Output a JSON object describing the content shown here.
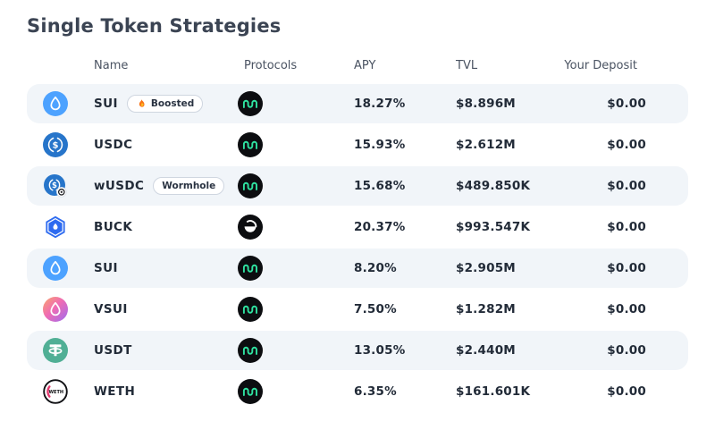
{
  "title": "Single Token Strategies",
  "table": {
    "headers": {
      "name": "Name",
      "protocols": "Protocols",
      "apy": "APY",
      "tvl": "TVL",
      "deposit": "Your Deposit"
    },
    "rows": [
      {
        "token": "SUI",
        "token_icon": "sui-icon",
        "badge": "Boosted",
        "badge_icon": "flame-icon",
        "protocol_icon": "navi-icon",
        "apy": "18.27%",
        "tvl": "$8.896M",
        "deposit": "$0.00"
      },
      {
        "token": "USDC",
        "token_icon": "usdc-icon",
        "badge": null,
        "badge_icon": null,
        "protocol_icon": "navi-icon",
        "apy": "15.93%",
        "tvl": "$2.612M",
        "deposit": "$0.00"
      },
      {
        "token": "wUSDC",
        "token_icon": "wusdc-icon",
        "badge": "Wormhole",
        "badge_icon": null,
        "protocol_icon": "navi-icon",
        "apy": "15.68%",
        "tvl": "$489.850K",
        "deposit": "$0.00"
      },
      {
        "token": "BUCK",
        "token_icon": "buck-icon",
        "badge": null,
        "badge_icon": null,
        "protocol_icon": "bucket-icon",
        "apy": "20.37%",
        "tvl": "$993.547K",
        "deposit": "$0.00"
      },
      {
        "token": "SUI",
        "token_icon": "sui-icon",
        "badge": null,
        "badge_icon": null,
        "protocol_icon": "navi-icon",
        "apy": "8.20%",
        "tvl": "$2.905M",
        "deposit": "$0.00"
      },
      {
        "token": "VSUI",
        "token_icon": "vsui-icon",
        "badge": null,
        "badge_icon": null,
        "protocol_icon": "navi-icon",
        "apy": "7.50%",
        "tvl": "$1.282M",
        "deposit": "$0.00"
      },
      {
        "token": "USDT",
        "token_icon": "usdt-icon",
        "badge": null,
        "badge_icon": null,
        "protocol_icon": "navi-icon",
        "apy": "13.05%",
        "tvl": "$2.440M",
        "deposit": "$0.00"
      },
      {
        "token": "WETH",
        "token_icon": "weth-icon",
        "badge": null,
        "badge_icon": null,
        "protocol_icon": "navi-icon",
        "apy": "6.35%",
        "tvl": "$161.601K",
        "deposit": "$0.00"
      }
    ]
  },
  "colors": {
    "title_text": "#3b4453",
    "row_alt_bg": "#f1f5f9",
    "sui_blue": "#4da2ff",
    "usdc_blue": "#2775ca",
    "buck_blue": "#2e6bf0",
    "usdt_green": "#50af95",
    "navi_green": "#2fe3a1",
    "weth_pink": "#e3396f"
  }
}
